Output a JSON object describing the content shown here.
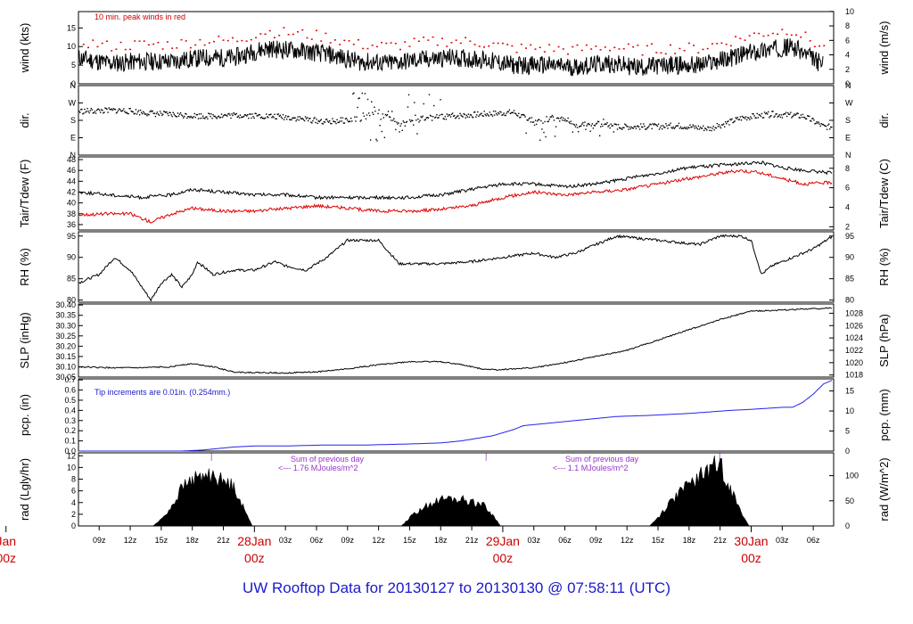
{
  "title": "UW Rooftop Data for 20130127  to  20130130 @ 07:58:11  (UTC)",
  "colors": {
    "frame": "#000000",
    "red": "#dd0000",
    "blue": "#2222ee",
    "purple": "#9933cc",
    "title": "#1a1acc"
  },
  "x_axis": {
    "tick_labels": [
      "09z",
      "12z",
      "15z",
      "18z",
      "21z",
      "03z",
      "06z",
      "09z",
      "12z",
      "15z",
      "18z",
      "21z",
      "03z",
      "06z",
      "09z",
      "12z",
      "15z",
      "18z",
      "21z",
      "03z",
      "06z"
    ],
    "tick_hours": [
      2,
      5,
      8,
      11,
      14,
      20,
      23,
      26,
      29,
      32,
      35,
      38,
      44,
      47,
      50,
      53,
      56,
      59,
      62,
      68,
      71
    ],
    "range_hours": [
      0,
      72.97
    ],
    "day_labels": [
      {
        "name": "Jan",
        "time": "00z",
        "hour": -7
      },
      {
        "name": "28Jan",
        "time": "00z",
        "hour": 17
      },
      {
        "name": "29Jan",
        "time": "00z",
        "hour": 41
      },
      {
        "name": "30Jan",
        "time": "00z",
        "hour": 65
      }
    ]
  },
  "chart_data": [
    {
      "id": "wind",
      "type": "line",
      "ylabel_left": "wind (kts)",
      "ylabel_right": "wind (m/s)",
      "ylim": [
        0,
        19.4
      ],
      "yticks": [
        0,
        5,
        10,
        15
      ],
      "yticks_right": [
        "0",
        "2",
        "4",
        "6",
        "8",
        "10"
      ],
      "yticks_right_values": [
        0,
        3.89,
        7.78,
        11.66,
        15.55,
        19.44
      ],
      "annotation": "10 min. peak winds in red",
      "series": [
        {
          "name": "wind",
          "color": "#000000",
          "x": [
            0,
            3,
            6,
            9,
            12,
            15,
            18,
            21,
            24,
            27,
            30,
            33,
            36,
            39,
            42,
            45,
            48,
            51,
            54,
            57,
            60,
            63,
            66,
            69,
            72
          ],
          "y": [
            7,
            5.5,
            6,
            6,
            7,
            7,
            9.5,
            9,
            8,
            6,
            5.5,
            6.5,
            7,
            6.5,
            5,
            5,
            4.5,
            5.5,
            4.5,
            5,
            5,
            7,
            9,
            10,
            5
          ]
        },
        {
          "name": "10 min. peak winds",
          "color": "#dd0000"
        }
      ]
    },
    {
      "id": "dir",
      "type": "scatter",
      "ylabel": "dir.",
      "ylim": [
        0,
        360
      ],
      "ytick_labels": [
        "N",
        "E",
        "S",
        "W",
        "N"
      ],
      "ytick_values": [
        0,
        90,
        180,
        270,
        360
      ],
      "series": [
        {
          "name": "direction",
          "color": "#000000",
          "x": [
            0,
            4,
            8,
            12,
            16,
            20,
            24,
            27,
            29,
            31,
            33,
            36,
            39,
            42,
            44,
            46,
            48,
            50,
            52,
            55,
            58,
            61,
            64,
            67,
            70,
            72
          ],
          "y": [
            230,
            235,
            215,
            205,
            210,
            200,
            175,
            190,
            225,
            160,
            190,
            205,
            215,
            225,
            170,
            200,
            160,
            165,
            150,
            150,
            155,
            140,
            195,
            215,
            205,
            150
          ]
        }
      ]
    },
    {
      "id": "temp",
      "type": "line",
      "ylabel_left": "Tair/Tdew (F)",
      "ylabel_right": "Tair/Tdew (C)",
      "ylim": [
        35,
        48.5
      ],
      "yticks": [
        36,
        38,
        40,
        42,
        44,
        46,
        48
      ],
      "yticks_right": [
        "2",
        "4",
        "6",
        "8"
      ],
      "yticks_right_values": [
        35.6,
        39.2,
        42.8,
        46.4
      ],
      "series": [
        {
          "name": "Tair",
          "color": "#000000",
          "x": [
            0,
            3,
            6,
            9,
            11,
            14,
            17,
            20,
            23,
            26,
            29,
            32,
            35,
            38,
            41,
            44,
            47,
            50,
            53,
            56,
            59,
            62,
            64,
            66,
            68,
            70,
            72.9
          ],
          "y": [
            42,
            41.5,
            41,
            41.5,
            42.5,
            42,
            41.5,
            41.5,
            41,
            41,
            41,
            41,
            41.5,
            42.5,
            43.5,
            43.5,
            43,
            43.5,
            44.5,
            45.5,
            46.5,
            47,
            47.2,
            47.5,
            46.5,
            46,
            45.5
          ]
        },
        {
          "name": "Tdew",
          "color": "#dd0000",
          "x": [
            0,
            3,
            5,
            7,
            9,
            11,
            14,
            17,
            20,
            23,
            26,
            29,
            32,
            35,
            38,
            41,
            44,
            47,
            50,
            53,
            56,
            59,
            62,
            64,
            66,
            68,
            70,
            72.9
          ],
          "y": [
            37.8,
            38,
            38,
            36.5,
            38,
            39,
            38.5,
            38.5,
            39,
            39.5,
            39,
            38.5,
            38.5,
            38.8,
            39.5,
            41,
            42,
            41.5,
            42,
            42.5,
            43.5,
            44.5,
            45.5,
            46,
            45.5,
            44.5,
            43.5,
            43.8
          ]
        }
      ]
    },
    {
      "id": "rh",
      "type": "line",
      "ylabel_left": "RH (%)",
      "ylabel_right": "RH (%)",
      "ylim": [
        79.5,
        96
      ],
      "yticks": [
        80,
        85,
        90,
        95
      ],
      "yticks_right": [
        "80",
        "85",
        "90",
        "95"
      ],
      "yticks_right_values": [
        80,
        85,
        90,
        95
      ],
      "series": [
        {
          "name": "RH",
          "color": "#000000",
          "x": [
            0,
            2,
            3.5,
            5,
            7,
            8,
            9,
            10,
            11,
            11.5,
            13,
            15,
            17,
            19,
            20,
            22,
            24,
            26,
            29,
            31,
            33,
            35,
            38,
            41,
            44,
            46,
            48,
            50,
            52,
            54,
            56,
            58,
            60,
            62,
            64,
            65,
            66,
            67,
            69,
            71,
            72.9
          ],
          "y": [
            84,
            86,
            90,
            87,
            80,
            84,
            86,
            83,
            86,
            89,
            86,
            87,
            87,
            89,
            88,
            87,
            90,
            94,
            94,
            88.5,
            88.5,
            88.5,
            89,
            90,
            91,
            90,
            91,
            93,
            95,
            94.5,
            94,
            93.5,
            93,
            95,
            95,
            94,
            86,
            88,
            90,
            92,
            95
          ]
        }
      ]
    },
    {
      "id": "slp",
      "type": "line",
      "ylabel_left": "SLP (inHg)",
      "ylabel_right": "SLP (hPa)",
      "ylim": [
        30.05,
        30.405
      ],
      "yticks": [
        30.05,
        30.1,
        30.15,
        30.2,
        30.25,
        30.3,
        30.35,
        30.4
      ],
      "ytick_labels": [
        "30.05",
        "30.10",
        "30.15",
        "30.20",
        "30.25",
        "30.30",
        "30.35",
        "30.40"
      ],
      "yticks_right": [
        "1018",
        "1020",
        "1022",
        "1024",
        "1026",
        "1028"
      ],
      "yticks_right_values": [
        30.06,
        30.12,
        30.18,
        30.24,
        30.3,
        30.36
      ],
      "series": [
        {
          "name": "SLP",
          "color": "#000000",
          "x": [
            0,
            3,
            6,
            9,
            10,
            11,
            13,
            15,
            17,
            20,
            23,
            26,
            29,
            32,
            35,
            37,
            39,
            40.5,
            42,
            44,
            47,
            50,
            53,
            56,
            59,
            62,
            65,
            68,
            70,
            72.9
          ],
          "y": [
            30.1,
            30.095,
            30.095,
            30.1,
            30.11,
            30.115,
            30.1,
            30.075,
            30.072,
            30.07,
            30.075,
            30.09,
            30.11,
            30.125,
            30.125,
            30.11,
            30.09,
            30.085,
            30.09,
            30.095,
            30.12,
            30.15,
            30.18,
            30.23,
            30.28,
            30.33,
            30.37,
            30.375,
            30.38,
            30.385
          ]
        }
      ]
    },
    {
      "id": "pcp",
      "type": "line",
      "ylabel_left": "pcp. (in)",
      "ylabel_right": "pcp. (mm)",
      "ylim": [
        0,
        0.71
      ],
      "yticks": [
        0,
        0.1,
        0.2,
        0.3,
        0.4,
        0.5,
        0.6,
        0.7
      ],
      "ytick_labels": [
        "0.0",
        "0.1",
        "0.2",
        "0.3",
        "0.4",
        "0.5",
        "0.6",
        "0.7"
      ],
      "yticks_right": [
        "0",
        "5",
        "10",
        "15"
      ],
      "yticks_right_values": [
        0,
        0.197,
        0.394,
        0.591
      ],
      "annotation": "Tip increments are 0.01in. (0.254mm.)",
      "series": [
        {
          "name": "precip",
          "color": "#2222ee",
          "x": [
            0,
            10,
            12,
            13,
            15,
            17,
            20,
            24,
            28,
            32,
            35,
            37,
            40,
            42,
            43,
            44,
            46,
            48,
            50,
            52,
            55,
            59,
            63,
            65,
            68,
            69,
            70,
            71,
            72,
            72.9
          ],
          "y": [
            0,
            0,
            0.01,
            0.02,
            0.04,
            0.05,
            0.05,
            0.06,
            0.06,
            0.07,
            0.08,
            0.1,
            0.15,
            0.21,
            0.25,
            0.26,
            0.28,
            0.3,
            0.32,
            0.34,
            0.35,
            0.37,
            0.4,
            0.41,
            0.43,
            0.43,
            0.48,
            0.56,
            0.66,
            0.7
          ]
        }
      ]
    },
    {
      "id": "rad",
      "type": "area",
      "ylabel_left": "rad (Lgly/hr)",
      "ylabel_right": "rad (W/m^2)",
      "ylim": [
        0,
        12.5
      ],
      "yticks": [
        0,
        2,
        4,
        6,
        8,
        10,
        12
      ],
      "yticks_right": [
        "0",
        "50",
        "100"
      ],
      "yticks_right_values": [
        0,
        4.3,
        8.6
      ],
      "annotations": [
        {
          "line1": "Sum of previous day",
          "line2": "<--- 1.76 MJoules/m^2"
        },
        {
          "line1": "Sum of previous day",
          "line2": "<--- 1.1 MJoules/m^2"
        }
      ],
      "series": [
        {
          "name": "radiation",
          "color": "#000000",
          "x": [
            7.2,
            8,
            9,
            10,
            11,
            12,
            13,
            14,
            15,
            16,
            16.8,
            31.2,
            32,
            33,
            34,
            35,
            36,
            37,
            38,
            39,
            40,
            40.8,
            55.2,
            56,
            57,
            58,
            59,
            60,
            61,
            62,
            63,
            64,
            64.8
          ],
          "y": [
            0,
            1.2,
            3.5,
            7,
            8.5,
            9,
            9.5,
            8,
            7.5,
            3,
            0,
            0,
            1.5,
            3,
            4,
            4.8,
            5,
            4.8,
            4.5,
            4,
            2,
            0,
            0,
            1.5,
            4,
            6,
            7.5,
            9,
            10.5,
            11.5,
            7,
            2.5,
            0
          ]
        }
      ]
    }
  ]
}
